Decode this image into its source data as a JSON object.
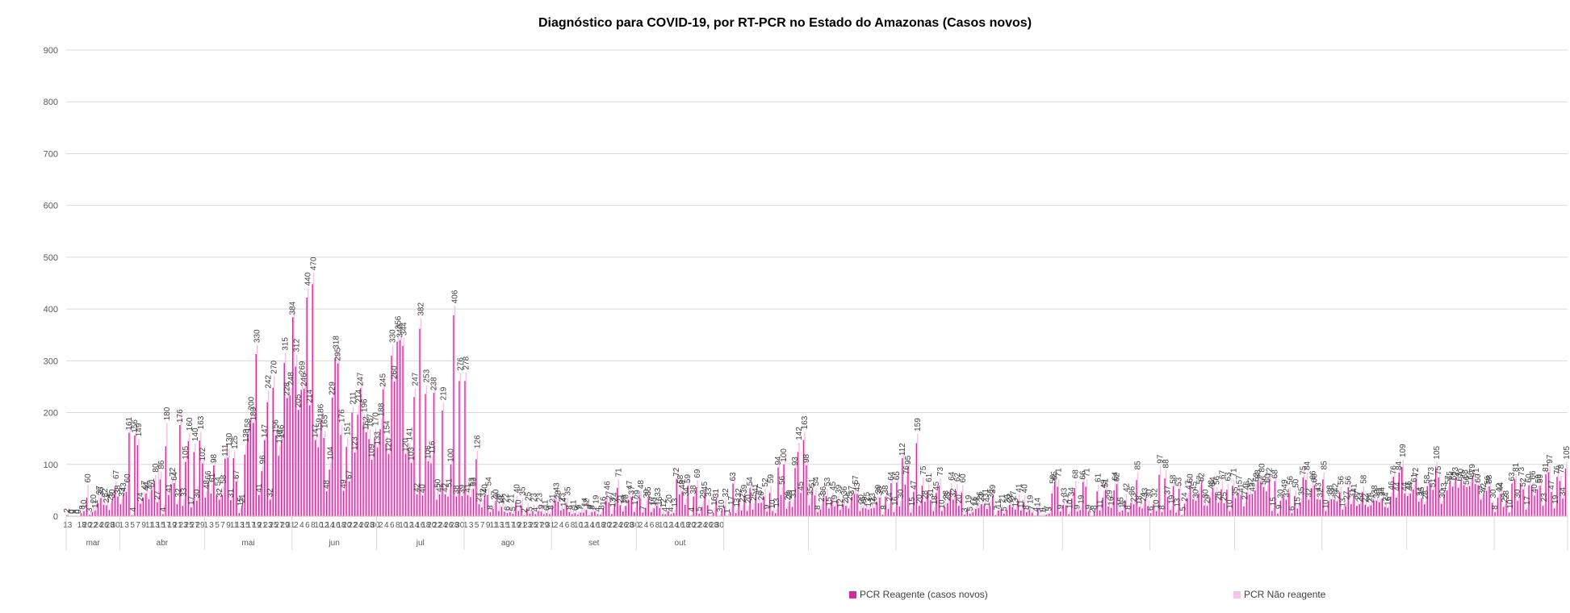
{
  "chart_data": {
    "type": "bar",
    "title": "Diagnóstico para COVID-19, por RT-PCR no Estado do Amazonas  (Casos novos)",
    "ylim": [
      0,
      900
    ],
    "yticks": [
      0,
      100,
      200,
      300,
      400,
      500,
      600,
      700,
      800,
      900
    ],
    "grid": true,
    "legend_position": "bottom",
    "start_date": "2020-03-13",
    "x_tick_labels": [
      "13",
      "18",
      "20",
      "22",
      "24",
      "26",
      "28",
      "30",
      "1",
      "3",
      "5",
      "7",
      "9",
      "11",
      "13",
      "15",
      "17",
      "19",
      "21",
      "23",
      "25",
      "27",
      "29",
      "1",
      "3",
      "5",
      "7",
      "9",
      "11",
      "13",
      "15",
      "17",
      "19",
      "21",
      "23",
      "25",
      "27",
      "29",
      "31",
      "2",
      "4",
      "6",
      "8",
      "10",
      "12",
      "14",
      "16",
      "18",
      "20",
      "22",
      "24",
      "26",
      "28",
      "30",
      "2",
      "4",
      "6",
      "8",
      "10",
      "12",
      "14",
      "16",
      "18",
      "20",
      "22",
      "24",
      "26",
      "28",
      "30",
      "1",
      "3",
      "5",
      "7",
      "9",
      "11",
      "13",
      "15",
      "17",
      "19",
      "21",
      "23",
      "25",
      "27",
      "29",
      "31",
      "2",
      "4",
      "6",
      "8",
      "10",
      "12",
      "14",
      "16",
      "18",
      "20",
      "22",
      "24",
      "26",
      "28",
      "30",
      "2",
      "4",
      "6",
      "8",
      "10",
      "12",
      "14",
      "16",
      "18",
      "20",
      "22",
      "24",
      "26",
      "28",
      "30"
    ],
    "months": [
      "mar",
      "abr",
      "mai",
      "jun",
      "jul",
      "ago",
      "set",
      "out"
    ],
    "series": [
      {
        "name": "PCR Reagente (casos novos)",
        "color": "#cc2f9a",
        "values": [
          2,
          0,
          0,
          0,
          0,
          6,
          10,
          36,
          3,
          8,
          11,
          25,
          35,
          22,
          21,
          12,
          30,
          55,
          38,
          23,
          43,
          47,
          161,
          2,
          156,
          137,
          24,
          36,
          44,
          33,
          51,
          68,
          27,
          71,
          4,
          135,
          41,
          61,
          64,
          23,
          176,
          20,
          105,
          145,
          17,
          124,
          30,
          146,
          102,
          36,
          66,
          44,
          98,
          40,
          32,
          41,
          111,
          113,
          31,
          112,
          67,
          6,
          21,
          119,
          158,
          186,
          180,
          313,
          41,
          87,
          147,
          220,
          32,
          248,
          156,
          117,
          146,
          296,
          228,
          233,
          384,
          289,
          205,
          244,
          246,
          422,
          214,
          448,
          147,
          133,
          186,
          151,
          48,
          90,
          229,
          305,
          295,
          157,
          49,
          134,
          67,
          200,
          123,
          196,
          247,
          177,
          162,
          149,
          109,
          150,
          133,
          168,
          245,
          140,
          120,
          310,
          260,
          337,
          340,
          329,
          120,
          127,
          103,
          230,
          42,
          362,
          40,
          236,
          106,
          102,
          238,
          32,
          42,
          204,
          42,
          38,
          100,
          388,
          38,
          261,
          39,
          261,
          41,
          37,
          53,
          110,
          23,
          17,
          40,
          41,
          8,
          14,
          30,
          10,
          18,
          9,
          6,
          8,
          5,
          26,
          10,
          20,
          2,
          12,
          5,
          10,
          4,
          10,
          9,
          4,
          6,
          4,
          21,
          30,
          28,
          11,
          14,
          22,
          8,
          4,
          6,
          3,
          7,
          7,
          12,
          2,
          8,
          9,
          4,
          3,
          16,
          30,
          27,
          4,
          24,
          55,
          21,
          9,
          20,
          31,
          37,
          8,
          29,
          35,
          7,
          16,
          35,
          8,
          15,
          20,
          16,
          4,
          4,
          10,
          4,
          6,
          72,
          42,
          48,
          22,
          59,
          1,
          38,
          56,
          5,
          18,
          45,
          21,
          0,
          7,
          31,
          0,
          10,
          19,
          1,
          8,
          63,
          6,
          32,
          11,
          39,
          10,
          54,
          13,
          41,
          25,
          26,
          38,
          9,
          45,
          10,
          6,
          94,
          41,
          100,
          14,
          29,
          18,
          93,
          124,
          45,
          147,
          98,
          21,
          51,
          40,
          8,
          13,
          36,
          39,
          15,
          32,
          19,
          27,
          12,
          23,
          20,
          15,
          37,
          43,
          43,
          10,
          16,
          15,
          13,
          15,
          16,
          27,
          36,
          3,
          38,
          14,
          64,
          8,
          65,
          19,
          112,
          61,
          95,
          7,
          47,
          141,
          20,
          59,
          28,
          47,
          31,
          10,
          45,
          59,
          10,
          18,
          25,
          50,
          32,
          49,
          20,
          46,
          3,
          11,
          5,
          8,
          14,
          16,
          23,
          21,
          14,
          20,
          39,
          2,
          11,
          13,
          5,
          12,
          22,
          18,
          13,
          30,
          11,
          27,
          8,
          12,
          7,
          1,
          14,
          1,
          1,
          3,
          5,
          44,
          65,
          57,
          9,
          22,
          21,
          4,
          34,
          54,
          9,
          12,
          66,
          57,
          9,
          0,
          8,
          48,
          11,
          36,
          51,
          19,
          16,
          50,
          62,
          8,
          11,
          30,
          8,
          26,
          23,
          70,
          18,
          15,
          33,
          20,
          6,
          23,
          10,
          80,
          8,
          73,
          37,
          12,
          58,
          7,
          53,
          2,
          24,
          34,
          60,
          33,
          30,
          44,
          62,
          21,
          20,
          36,
          54,
          44,
          26,
          52,
          25,
          51,
          10,
          59,
          35,
          45,
          41,
          19,
          46,
          42,
          43,
          50,
          68,
          65,
          56,
          48,
          72,
          10,
          68,
          5,
          30,
          37,
          32,
          45,
          6,
          39,
          15,
          26,
          75,
          70,
          32,
          54,
          60,
          33,
          32,
          71,
          10,
          29,
          33,
          32,
          29,
          45,
          13,
          19,
          56,
          23,
          41,
          20,
          23,
          47,
          22,
          18,
          21,
          30,
          30,
          27,
          34,
          18,
          16,
          38,
          76,
          36,
          84,
          95,
          44,
          39,
          44,
          52,
          72,
          28,
          35,
          23,
          58,
          64,
          51,
          92,
          75,
          24,
          43,
          50,
          65,
          57,
          73,
          55,
          70,
          60,
          56,
          58,
          79,
          62,
          60,
          32,
          42,
          49,
          58,
          26,
          8,
          36,
          44,
          18,
          28,
          7,
          63,
          71,
          30,
          64,
          52,
          13,
          60,
          58,
          40,
          52,
          59,
          20,
          81,
          85,
          47,
          15,
          76,
          68,
          34,
          92
        ]
      },
      {
        "name": "PCR Não reagente",
        "color": "#f7c1ea",
        "values": [
          5,
          0,
          0,
          0,
          0,
          8,
          13,
          60,
          8,
          20,
          24,
          37,
          46,
          32,
          28,
          25,
          40,
          67,
          45,
          33,
          54,
          60,
          183,
          4,
          172,
          149,
          34,
          47,
          53,
          47,
          58,
          80,
          105,
          86,
          21,
          180,
          57,
          72,
          82,
          32,
          199,
          33,
          126,
          160,
          32,
          140,
          58,
          163,
          116,
          48,
          79,
          61,
          112,
          54,
          51,
          58,
          133,
          130,
          42,
          125,
          79,
          15,
          35,
          138,
          173,
          200,
          199,
          330,
          46,
          96,
          160,
          242,
          48,
          270,
          168,
          136,
          158,
          315,
          255,
          248,
          401,
          312,
          227,
          269,
          261,
          440,
          235,
          470,
          169,
          159,
          201,
          165,
          63,
          104,
          247,
          318,
          318,
          176,
          67,
          151,
          83,
          211,
          145,
          214,
          270,
          196,
          178,
          167,
          126,
          170,
          144,
          188,
          264,
          154,
          138,
          330,
          281,
          356,
          353,
          344,
          136,
          141,
          119,
          247,
          56,
          382,
          58,
          253,
          123,
          116,
          256,
          50,
          63,
          219,
          57,
          51,
          115,
          406,
          54,
          276,
          54,
          278,
          56,
          53,
          65,
          126,
          37,
          32,
          51,
          54,
          20,
          27,
          46,
          22,
          33,
          22,
          17,
          21,
          14,
          40,
          21,
          35,
          11,
          25,
          12,
          23,
          13,
          23,
          21,
          11,
          14,
          8,
          36,
          43,
          42,
          23,
          27,
          35,
          19,
          11,
          14,
          9,
          15,
          14,
          24,
          9,
          17,
          19,
          11,
          8,
          29,
          46,
          41,
          13,
          36,
          71,
          35,
          19,
          32,
          47,
          49,
          17,
          46,
          48,
          16,
          30,
          48,
          17,
          29,
          33,
          27,
          12,
          11,
          20,
          11,
          13,
          88,
          58,
          62,
          34,
          75,
          4,
          52,
          69,
          12,
          29,
          58,
          33,
          3,
          16,
          45,
          3,
          20,
          32,
          6,
          17,
          80,
          13,
          46,
          22,
          52,
          20,
          70,
          25,
          55,
          37,
          38,
          52,
          18,
          59,
          20,
          13,
          112,
          56,
          115,
          26,
          42,
          31,
          108,
          142,
          59,
          163,
          113,
          35,
          65,
          54,
          16,
          23,
          51,
          53,
          26,
          45,
          30,
          39,
          21,
          36,
          30,
          25,
          50,
          57,
          56,
          20,
          26,
          25,
          21,
          23,
          25,
          39,
          49,
          8,
          52,
          24,
          79,
          16,
          81,
          30,
          130,
          76,
          112,
          15,
          61,
          159,
          32,
          75,
          40,
          61,
          44,
          18,
          59,
          73,
          19,
          28,
          37,
          64,
          46,
          62,
          31,
          60,
          9,
          19,
          11,
          16,
          23,
          26,
          34,
          31,
          23,
          30,
          52,
          7,
          19,
          21,
          11,
          20,
          31,
          27,
          21,
          41,
          18,
          40,
          14,
          19,
          12,
          4,
          23,
          4,
          4,
          7,
          9,
          58,
          80,
          71,
          16,
          33,
          31,
          10,
          47,
          68,
          15,
          19,
          80,
          71,
          16,
          2,
          14,
          61,
          19,
          49,
          66,
          29,
          25,
          64,
          77,
          15,
          18,
          42,
          14,
          36,
          33,
          85,
          27,
          24,
          44,
          30,
          11,
          32,
          16,
          97,
          14,
          88,
          49,
          19,
          72,
          13,
          67,
          5,
          34,
          47,
          75,
          45,
          41,
          57,
          77,
          30,
          28,
          48,
          68,
          56,
          36,
          67,
          34,
          63,
          15,
          71,
          47,
          57,
          51,
          27,
          57,
          52,
          54,
          62,
          83,
          80,
          70,
          60,
          85,
          15,
          83,
          9,
          41,
          49,
          43,
          56,
          11,
          50,
          23,
          35,
          90,
          84,
          43,
          66,
          73,
          43,
          41,
          85,
          15,
          38,
          43,
          42,
          38,
          56,
          20,
          27,
          68,
          31,
          51,
          27,
          30,
          58,
          29,
          24,
          28,
          38,
          38,
          34,
          42,
          24,
          22,
          46,
          89,
          44,
          97,
          109,
          52,
          46,
          52,
          61,
          83,
          34,
          41,
          28,
          67,
          73,
          59,
          105,
          87,
          30,
          49,
          57,
          74,
          65,
          83,
          63,
          80,
          68,
          64,
          66,
          90,
          71,
          68,
          37,
          48,
          56,
          66,
          30,
          12,
          42,
          50,
          22,
          32,
          10,
          72,
          81,
          35,
          73,
          60,
          17,
          69,
          66,
          46,
          59,
          67,
          23,
          93,
          97,
          54,
          19,
          87,
          78,
          39,
          105
        ]
      }
    ]
  }
}
